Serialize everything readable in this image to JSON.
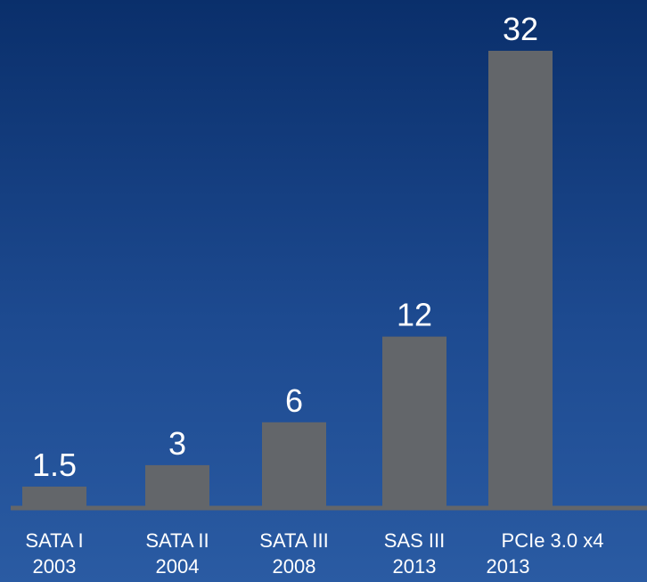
{
  "chart_data": {
    "type": "bar",
    "categories": [
      {
        "line1": "SATA I",
        "line2": "2003"
      },
      {
        "line1": "SATA II",
        "line2": "2004"
      },
      {
        "line1": "SATA III",
        "line2": "2008"
      },
      {
        "line1": "SAS III",
        "line2": "2013"
      },
      {
        "line1": "PCIe 3.0 x4",
        "line2": "2013"
      }
    ],
    "values": [
      1.5,
      3,
      6,
      12,
      32
    ],
    "value_labels": [
      "1.5",
      "3",
      "6",
      "12",
      "32"
    ],
    "title": "",
    "xlabel": "",
    "ylabel": "",
    "ylim": [
      0,
      32
    ],
    "grid": false,
    "legend": "none",
    "colors": {
      "bar": "#63666a",
      "baseline": "#63666a",
      "text": "#ffffff",
      "background_top": "#0a2f6b",
      "background_bottom": "#2a5ba3"
    }
  }
}
